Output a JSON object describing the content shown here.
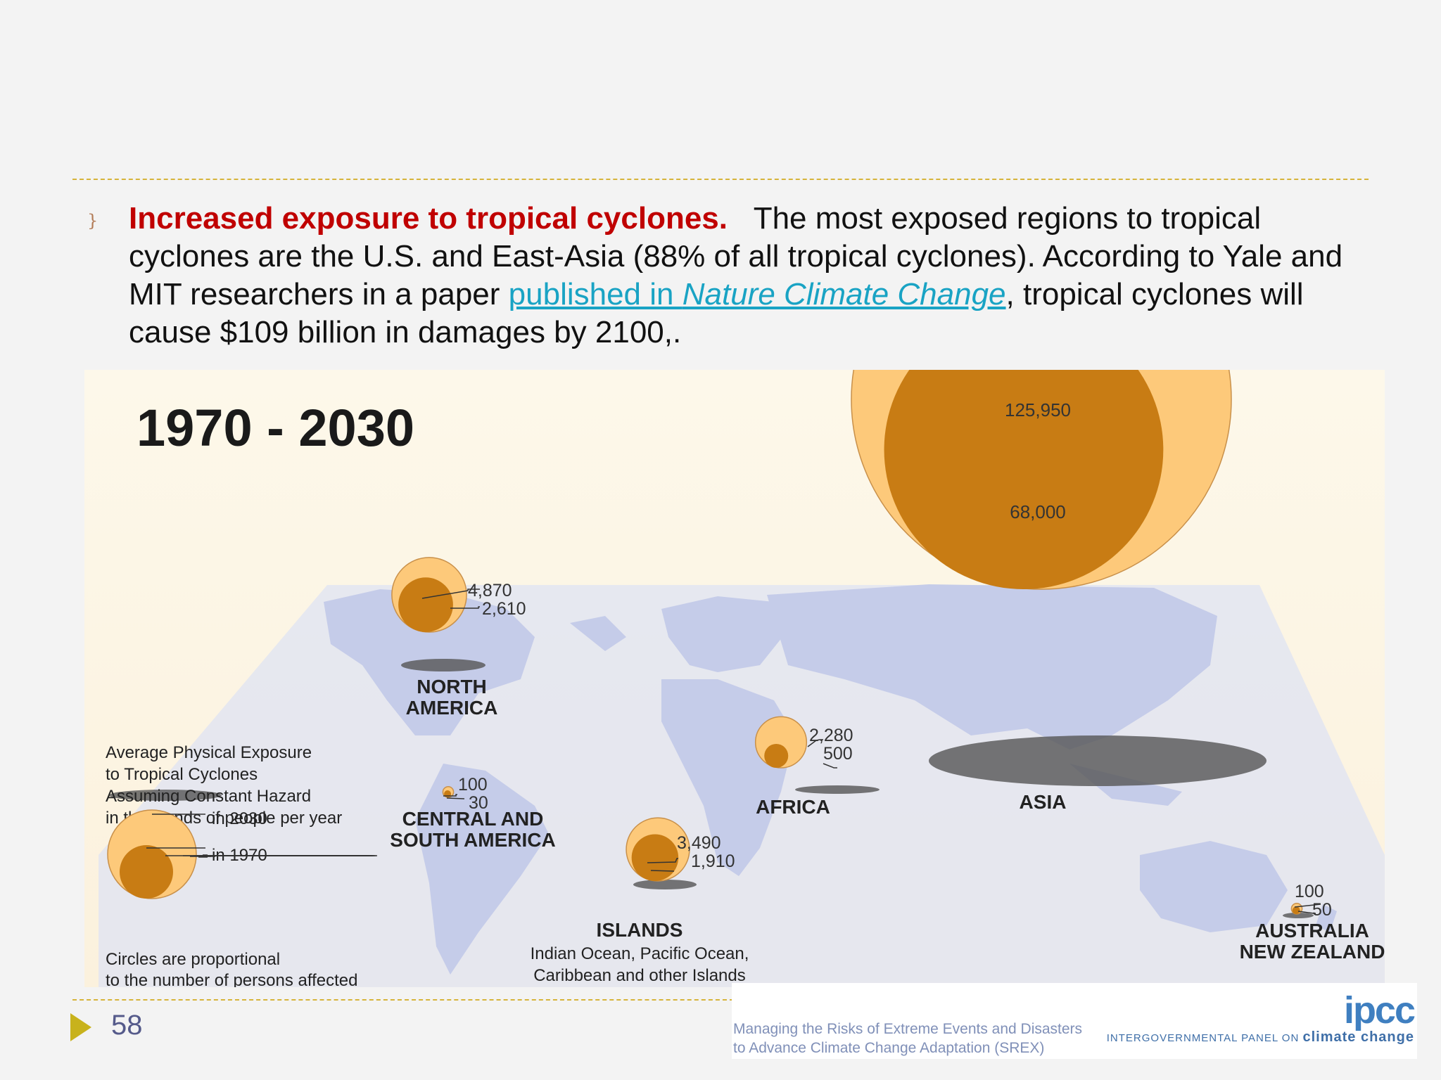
{
  "slide": {
    "bullet_glyph": "}",
    "heading": "Increased exposure to tropical cyclones.",
    "text_before_link": "The most exposed regions to tropical cyclones are the U.S. and East-Asia (88% of all tropical cyclones). According to Yale and MIT researchers in a paper ",
    "link_part1": "published in ",
    "link_part2_italic": "Nature Climate Change",
    "text_after_link": ", tropical cyclones will cause $109 billion in damages by 2100,.",
    "page_number": "58"
  },
  "infographic": {
    "period_title": "1970 - 2030",
    "legend": {
      "line1": "Average Physical Exposure",
      "line2": "to Tropical Cyclones",
      "line3": "Assuming Constant Hazard",
      "line4": "in thousands of people per year",
      "label_2030": "in 2030",
      "label_1970": "in 1970",
      "note_line1": "Circles are proportional",
      "note_line2": "to the number of persons affected"
    },
    "regions": [
      {
        "name_lines": [
          "NORTH",
          "AMERICA"
        ],
        "sub_lines": [],
        "exposure_2030": 4870,
        "exposure_1970": 2610,
        "label_2030": "4,870",
        "label_1970": "2,610"
      },
      {
        "name_lines": [
          "CENTRAL AND",
          "SOUTH AMERICA"
        ],
        "sub_lines": [],
        "exposure_2030": 100,
        "exposure_1970": 30,
        "label_2030": "100",
        "label_1970": "30"
      },
      {
        "name_lines": [
          "ISLANDS"
        ],
        "sub_lines": [
          "Indian Ocean, Pacific Ocean,",
          "Caribbean and other Islands"
        ],
        "exposure_2030": 3490,
        "exposure_1970": 1910,
        "label_2030": "3,490",
        "label_1970": "1,910"
      },
      {
        "name_lines": [
          "AFRICA"
        ],
        "sub_lines": [],
        "exposure_2030": 2280,
        "exposure_1970": 500,
        "label_2030": "2,280",
        "label_1970": "500"
      },
      {
        "name_lines": [
          "ASIA"
        ],
        "sub_lines": [],
        "exposure_2030": 125950,
        "exposure_1970": 68000,
        "label_2030": "125,950",
        "label_1970": "68,000"
      },
      {
        "name_lines": [
          "AUSTRALIA",
          "NEW ZEALAND"
        ],
        "sub_lines": [],
        "exposure_2030": 100,
        "exposure_1970": 50,
        "label_2030": "100",
        "label_1970": "50"
      }
    ],
    "colors": {
      "circle_2030": "#fdc97a",
      "circle_1970": "#c87c14",
      "map": "#ccd2ea",
      "background": "#fdf8ea"
    }
  },
  "footer": {
    "srex_line1": "Managing the Risks of Extreme Events and Disasters",
    "srex_line2": "to Advance Climate Change Adaptation (SREX)",
    "ipcc_logo": "ipcc",
    "ipcc_sub_small": "INTERGOVERNMENTAL PANEL ON",
    "ipcc_sub_big": "climate change"
  }
}
